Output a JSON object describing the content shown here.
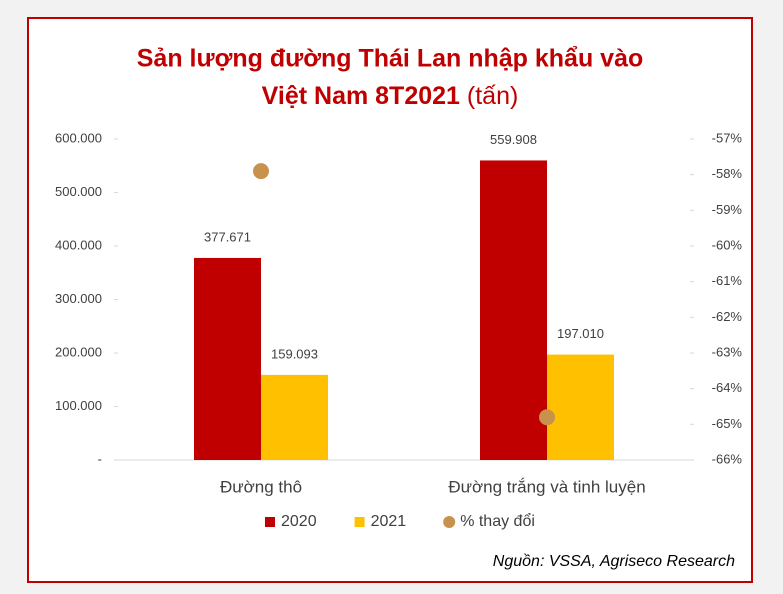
{
  "chart_data": {
    "type": "bar",
    "title": [
      "Sản lượng đường Thái Lan nhập khẩu vào",
      "Việt Nam 8T2021"
    ],
    "title_unit": "(tấn)",
    "categories": [
      "Đường thô",
      "Đường trắng và tinh luyện"
    ],
    "series": [
      {
        "name": "2020",
        "color": "#c00000",
        "values": [
          377671,
          559908
        ],
        "value_labels": [
          "377.671",
          "559.908"
        ]
      },
      {
        "name": "2021",
        "color": "#ffc000",
        "values": [
          159093,
          197010
        ],
        "value_labels": [
          "159.093",
          "197.010"
        ]
      },
      {
        "name": "% thay đổi",
        "type": "scatter",
        "axis": "y2",
        "color": "#c8924c",
        "values": [
          -57.9,
          -64.8
        ]
      }
    ],
    "ylim": [
      0,
      600000
    ],
    "yticks": [
      {
        "value": 0,
        "label": "-"
      },
      {
        "value": 100000,
        "label": "100.000"
      },
      {
        "value": 200000,
        "label": "200.000"
      },
      {
        "value": 300000,
        "label": "300.000"
      },
      {
        "value": 400000,
        "label": "400.000"
      },
      {
        "value": 500000,
        "label": "500.000"
      },
      {
        "value": 600000,
        "label": "600.000"
      }
    ],
    "y2lim": [
      -66,
      -57
    ],
    "y2ticks": [
      {
        "value": -66,
        "label": "-66%"
      },
      {
        "value": -65,
        "label": "-65%"
      },
      {
        "value": -64,
        "label": "-64%"
      },
      {
        "value": -63,
        "label": "-63%"
      },
      {
        "value": -62,
        "label": "-62%"
      },
      {
        "value": -61,
        "label": "-61%"
      },
      {
        "value": -60,
        "label": "-60%"
      },
      {
        "value": -59,
        "label": "-59%"
      },
      {
        "value": -58,
        "label": "-58%"
      },
      {
        "value": -57,
        "label": "-57%"
      }
    ],
    "legend": "bottom",
    "source": "Nguồn: VSSA, Agriseco Research"
  }
}
